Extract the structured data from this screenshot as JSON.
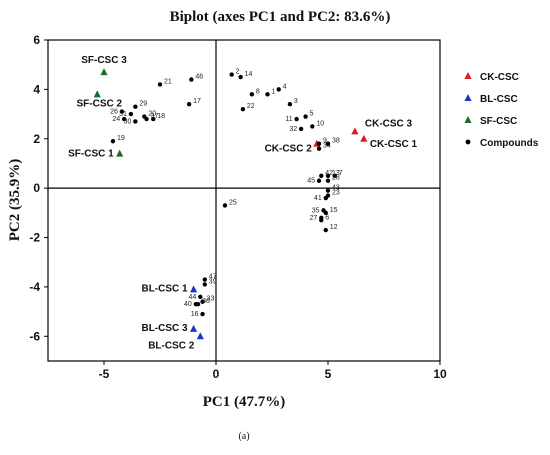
{
  "chart_data": {
    "type": "scatter",
    "title": "Biplot (axes PC1 and PC2: 83.6%)",
    "xlabel": "PC1 (47.7%)",
    "ylabel": "PC2 (35.9%)",
    "xlim": [
      -7.5,
      10
    ],
    "ylim": [
      -7,
      6
    ],
    "xticks": [
      -5,
      0,
      5,
      10
    ],
    "yticks": [
      -6,
      -4,
      -2,
      0,
      2,
      4,
      6
    ],
    "grid": false,
    "legend_position": "right",
    "caption": "(a)",
    "series": [
      {
        "name": "CK-CSC",
        "color": "#e31a1c",
        "marker": "triangle",
        "points": [
          {
            "label": "CK-CSC 3",
            "x": 6.2,
            "y": 2.3
          },
          {
            "label": "CK-CSC 1",
            "x": 6.6,
            "y": 2.0
          },
          {
            "label": "CK-CSC 2",
            "x": 4.5,
            "y": 1.8
          }
        ]
      },
      {
        "name": "BL-CSC",
        "color": "#1f35c6",
        "marker": "triangle",
        "points": [
          {
            "label": "BL-CSC 1",
            "x": -1.0,
            "y": -4.1
          },
          {
            "label": "BL-CSC 3",
            "x": -1.0,
            "y": -5.7
          },
          {
            "label": "BL-CSC 2",
            "x": -0.7,
            "y": -6.0
          }
        ]
      },
      {
        "name": "SF-CSC",
        "color": "#1b6e2a",
        "marker": "triangle",
        "points": [
          {
            "label": "SF-CSC 3",
            "x": -5.0,
            "y": 4.7
          },
          {
            "label": "SF-CSC 2",
            "x": -5.3,
            "y": 3.8
          },
          {
            "label": "SF-CSC 1",
            "x": -4.3,
            "y": 1.4
          }
        ]
      },
      {
        "name": "Compounds",
        "color": "#000000",
        "marker": "circle",
        "points": [
          {
            "label": "1",
            "x": 2.3,
            "y": 3.8
          },
          {
            "label": "2",
            "x": 0.7,
            "y": 4.6
          },
          {
            "label": "3",
            "x": 3.3,
            "y": 3.4
          },
          {
            "label": "4",
            "x": 2.8,
            "y": 4.0
          },
          {
            "label": "5",
            "x": 4.0,
            "y": 2.9
          },
          {
            "label": "6",
            "x": 4.7,
            "y": -1.3
          },
          {
            "label": "7",
            "x": 5.3,
            "y": 0.5
          },
          {
            "label": "8",
            "x": 1.6,
            "y": 3.8
          },
          {
            "label": "9",
            "x": 4.6,
            "y": 1.8
          },
          {
            "label": "10",
            "x": 4.3,
            "y": 2.5
          },
          {
            "label": "11",
            "x": 3.6,
            "y": 2.8
          },
          {
            "label": "12",
            "x": 4.9,
            "y": -1.7
          },
          {
            "label": "13",
            "x": 5.0,
            "y": 0.5
          },
          {
            "label": "14",
            "x": 1.1,
            "y": 4.5
          },
          {
            "label": "15",
            "x": 4.9,
            "y": -1.0
          },
          {
            "label": "16",
            "x": -0.6,
            "y": -5.1
          },
          {
            "label": "17",
            "x": -1.2,
            "y": 3.4
          },
          {
            "label": "18",
            "x": -2.8,
            "y": 2.8
          },
          {
            "label": "19",
            "x": -4.6,
            "y": 1.9
          },
          {
            "label": "20",
            "x": -3.2,
            "y": 2.9
          },
          {
            "label": "21",
            "x": -2.5,
            "y": 4.2
          },
          {
            "label": "22",
            "x": 1.2,
            "y": 3.2
          },
          {
            "label": "23",
            "x": 5.0,
            "y": -0.3
          },
          {
            "label": "24",
            "x": -4.1,
            "y": 2.8
          },
          {
            "label": "25",
            "x": 0.4,
            "y": -0.7
          },
          {
            "label": "26",
            "x": -4.2,
            "y": 3.1
          },
          {
            "label": "27",
            "x": 4.7,
            "y": -1.2
          },
          {
            "label": "28",
            "x": 5.0,
            "y": 0.3
          },
          {
            "label": "29",
            "x": -3.6,
            "y": 3.3
          },
          {
            "label": "30",
            "x": -3.6,
            "y": 2.7
          },
          {
            "label": "31",
            "x": -3.8,
            "y": 3.0
          },
          {
            "label": "32",
            "x": 3.8,
            "y": 2.4
          },
          {
            "label": "33",
            "x": -0.6,
            "y": -4.6
          },
          {
            "label": "34",
            "x": 4.6,
            "y": 1.6
          },
          {
            "label": "35",
            "x": 4.8,
            "y": -0.9
          },
          {
            "label": "36",
            "x": -0.8,
            "y": -4.7
          },
          {
            "label": "37",
            "x": -3.1,
            "y": 2.8
          },
          {
            "label": "38",
            "x": 5.0,
            "y": 1.8
          },
          {
            "label": "39",
            "x": -0.5,
            "y": -3.9
          },
          {
            "label": "40",
            "x": -0.9,
            "y": -4.7
          },
          {
            "label": "41",
            "x": 4.9,
            "y": -0.4
          },
          {
            "label": "42",
            "x": 4.7,
            "y": 0.5
          },
          {
            "label": "43",
            "x": 5.0,
            "y": -0.1
          },
          {
            "label": "44",
            "x": -0.7,
            "y": -4.4
          },
          {
            "label": "45",
            "x": 4.6,
            "y": 0.3
          },
          {
            "label": "46",
            "x": -1.1,
            "y": 4.4
          },
          {
            "label": "47",
            "x": -0.5,
            "y": -3.7
          }
        ]
      }
    ]
  }
}
